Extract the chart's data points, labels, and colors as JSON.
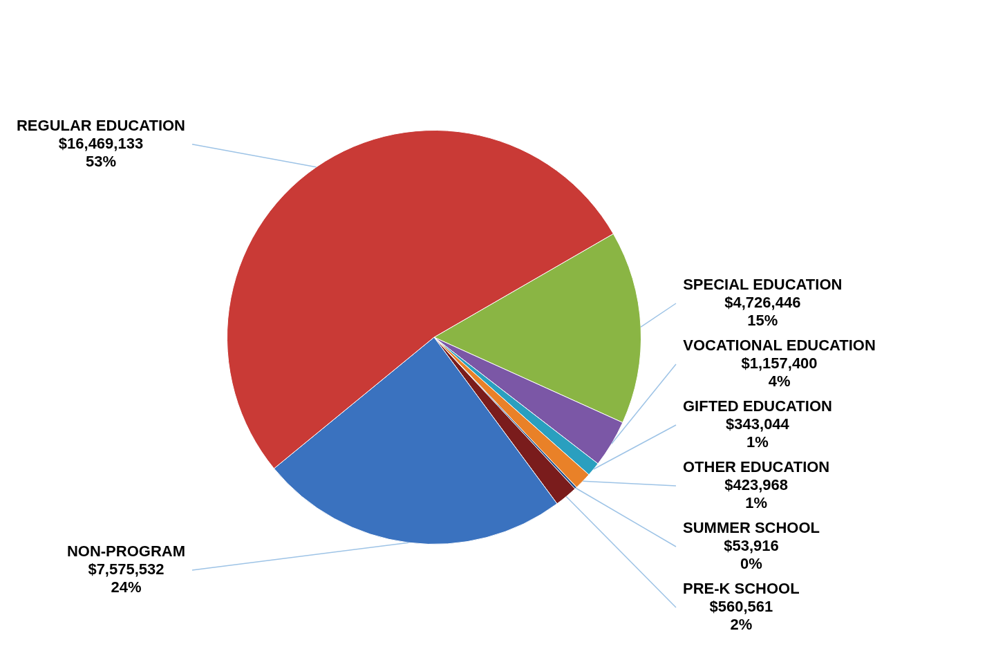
{
  "chart_data": {
    "type": "pie",
    "categories": [
      "SPECIAL EDUCATION",
      "VOCATIONAL EDUCATION",
      "GIFTED EDUCATION",
      "OTHER EDUCATION",
      "SUMMER SCHOOL",
      "PRE-K SCHOOL",
      "NON-PROGRAM",
      "REGULAR EDUCATION"
    ],
    "values": [
      4726446,
      1157400,
      343044,
      423968,
      53916,
      560561,
      7575532,
      16469133
    ],
    "value_labels": [
      "$4,726,446\n15%",
      "$1,157,400\n4%",
      "$343,044\n1%",
      "$423,968\n1%",
      "$53,916\n0%",
      "$560,561\n2%",
      "$7,575,532\n24%",
      "$16,469,133\n53%"
    ],
    "colors": [
      "#8ab544",
      "#7b57a6",
      "#2a9fbf",
      "#e98128",
      "#1f4f8a",
      "#7a1c1c",
      "#3a72bf",
      "#c93a36"
    ],
    "legend": false
  }
}
